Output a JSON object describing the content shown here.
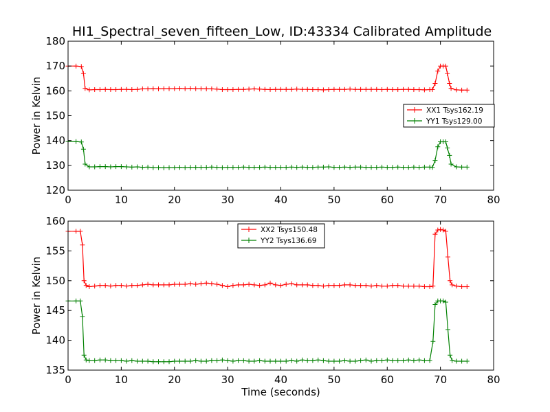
{
  "title": "HI1_Spectral_seven_fifteen_Low, ID:43334 Calibrated Amplitude",
  "colors": {
    "xx": "#ff0000",
    "yy": "#008000",
    "axis": "#000000",
    "background": "#ffffff"
  },
  "chart_data": [
    {
      "type": "line",
      "title": "HI1_Spectral_seven_fifteen_Low, ID:43334 Calibrated Amplitude",
      "xlabel": "",
      "ylabel": "Power in Kelvin",
      "xlim": [
        0,
        80
      ],
      "ylim": [
        120,
        180
      ],
      "xticks": [
        0,
        10,
        20,
        30,
        40,
        50,
        60,
        70,
        80
      ],
      "yticks": [
        120,
        130,
        140,
        150,
        160,
        170,
        180
      ],
      "grid": false,
      "legend": "center-right",
      "series": [
        {
          "name": "XX1 Tsys162.19",
          "color": "#ff0000",
          "x": [
            0,
            1.5,
            2.5,
            2.9,
            3.2,
            4,
            5,
            6,
            7,
            8,
            9,
            10,
            11,
            12,
            13,
            14,
            15,
            16,
            17,
            18,
            19,
            20,
            21,
            22,
            23,
            24,
            25,
            26,
            27,
            28,
            29,
            30,
            31,
            32,
            33,
            34,
            35,
            36,
            37,
            38,
            39,
            40,
            41,
            42,
            43,
            44,
            45,
            46,
            47,
            48,
            49,
            50,
            51,
            52,
            53,
            54,
            55,
            56,
            57,
            58,
            59,
            60,
            61,
            62,
            63,
            64,
            65,
            66,
            67,
            68,
            68.5,
            69.0,
            69.5,
            70,
            70.5,
            71.0,
            71.3,
            71.7,
            72.0,
            73,
            74,
            75
          ],
          "y": [
            170,
            170,
            169.8,
            167,
            161,
            160.4,
            160.5,
            160.5,
            160.6,
            160.5,
            160.5,
            160.6,
            160.6,
            160.5,
            160.6,
            160.8,
            160.8,
            160.9,
            160.8,
            160.9,
            160.9,
            160.9,
            161.0,
            160.9,
            161.0,
            160.9,
            160.9,
            160.8,
            160.8,
            160.7,
            160.5,
            160.5,
            160.5,
            160.6,
            160.6,
            160.7,
            160.8,
            160.7,
            160.6,
            160.5,
            160.6,
            160.6,
            160.6,
            160.6,
            160.7,
            160.6,
            160.6,
            160.5,
            160.5,
            160.4,
            160.5,
            160.6,
            160.6,
            160.6,
            160.7,
            160.6,
            160.6,
            160.6,
            160.6,
            160.6,
            160.5,
            160.6,
            160.5,
            160.5,
            160.6,
            160.6,
            160.5,
            160.5,
            160.4,
            160.5,
            160.5,
            163,
            168,
            170,
            170,
            170,
            167,
            163,
            161,
            160.4,
            160.3,
            160.3
          ]
        },
        {
          "name": "YY1 Tsys129.00",
          "color": "#008000",
          "x": [
            0,
            1.5,
            2.5,
            2.9,
            3.2,
            4,
            5,
            6,
            7,
            8,
            9,
            10,
            11,
            12,
            13,
            14,
            15,
            16,
            17,
            18,
            19,
            20,
            21,
            22,
            23,
            24,
            25,
            26,
            27,
            28,
            29,
            30,
            31,
            32,
            33,
            34,
            35,
            36,
            37,
            38,
            39,
            40,
            41,
            42,
            43,
            44,
            45,
            46,
            47,
            48,
            49,
            50,
            51,
            52,
            53,
            54,
            55,
            56,
            57,
            58,
            59,
            60,
            61,
            62,
            63,
            64,
            65,
            66,
            67,
            68,
            68.5,
            69.0,
            69.5,
            70,
            70.5,
            71.0,
            71.3,
            71.7,
            72.0,
            73,
            74,
            75
          ],
          "y": [
            139.6,
            139.6,
            139.4,
            136.5,
            130.5,
            129.4,
            129.4,
            129.5,
            129.5,
            129.4,
            129.5,
            129.5,
            129.4,
            129.3,
            129.4,
            129.2,
            129.3,
            129.1,
            129.1,
            129.0,
            129.1,
            129.1,
            129.2,
            129.1,
            129.2,
            129.2,
            129.2,
            129.2,
            129.3,
            129.2,
            129.1,
            129.2,
            129.2,
            129.2,
            129.3,
            129.2,
            129.2,
            129.2,
            129.3,
            129.2,
            129.2,
            129.2,
            129.2,
            129.3,
            129.2,
            129.3,
            129.2,
            129.2,
            129.3,
            129.3,
            129.4,
            129.2,
            129.2,
            129.3,
            129.2,
            129.3,
            129.3,
            129.2,
            129.2,
            129.2,
            129.3,
            129.2,
            129.2,
            129.3,
            129.2,
            129.2,
            129.3,
            129.2,
            129.3,
            129.3,
            129.2,
            132,
            137.5,
            139.5,
            139.5,
            139.5,
            137,
            134,
            130.5,
            129.4,
            129.3,
            129.3
          ]
        }
      ]
    },
    {
      "type": "line",
      "title": "",
      "xlabel": "Time (seconds)",
      "ylabel": "Power in Kelvin",
      "xlim": [
        0,
        80
      ],
      "ylim": [
        135,
        160
      ],
      "xticks": [
        0,
        10,
        20,
        30,
        40,
        50,
        60,
        70,
        80
      ],
      "yticks": [
        135,
        140,
        145,
        150,
        155,
        160
      ],
      "grid": false,
      "legend": "top-center",
      "series": [
        {
          "name": "XX2 Tsys150.48",
          "color": "#ff0000",
          "x": [
            0,
            1.5,
            2.3,
            2.7,
            3.0,
            3.4,
            4,
            5,
            6,
            7,
            8,
            9,
            10,
            11,
            12,
            13,
            14,
            15,
            16,
            17,
            18,
            19,
            20,
            21,
            22,
            23,
            24,
            25,
            26,
            27,
            28,
            29,
            30,
            31,
            32,
            33,
            34,
            35,
            36,
            37,
            38,
            39,
            40,
            41,
            42,
            43,
            44,
            45,
            46,
            47,
            48,
            49,
            50,
            51,
            52,
            53,
            54,
            55,
            56,
            57,
            58,
            59,
            60,
            61,
            62,
            63,
            64,
            65,
            66,
            67,
            68,
            68.6,
            69.0,
            69.5,
            70,
            70.5,
            71.0,
            71.4,
            71.8,
            72.2,
            73,
            74,
            75
          ],
          "y": [
            158.3,
            158.3,
            158.3,
            156,
            150,
            149.2,
            149.0,
            149.1,
            149.2,
            149.2,
            149.1,
            149.2,
            149.2,
            149.1,
            149.2,
            149.2,
            149.3,
            149.4,
            149.3,
            149.3,
            149.3,
            149.3,
            149.4,
            149.4,
            149.4,
            149.5,
            149.4,
            149.5,
            149.6,
            149.5,
            149.4,
            149.2,
            149.0,
            149.2,
            149.3,
            149.3,
            149.4,
            149.3,
            149.2,
            149.3,
            149.6,
            149.3,
            149.2,
            149.4,
            149.5,
            149.3,
            149.3,
            149.3,
            149.2,
            149.2,
            149.1,
            149.2,
            149.2,
            149.2,
            149.3,
            149.3,
            149.2,
            149.2,
            149.2,
            149.1,
            149.2,
            149.1,
            149.1,
            149.2,
            149.2,
            149.1,
            149.1,
            149.1,
            149.1,
            149.0,
            149.0,
            149.1,
            157.8,
            158.5,
            158.6,
            158.5,
            158.3,
            154,
            150,
            149.3,
            149.1,
            149.0,
            149.0
          ]
        },
        {
          "name": "YY2 Tsys136.69",
          "color": "#008000",
          "x": [
            0,
            1.5,
            2.3,
            2.7,
            3.0,
            3.4,
            4,
            5,
            6,
            7,
            8,
            9,
            10,
            11,
            12,
            13,
            14,
            15,
            16,
            17,
            18,
            19,
            20,
            21,
            22,
            23,
            24,
            25,
            26,
            27,
            28,
            29,
            30,
            31,
            32,
            33,
            34,
            35,
            36,
            37,
            38,
            39,
            40,
            41,
            42,
            43,
            44,
            45,
            46,
            47,
            48,
            49,
            50,
            51,
            52,
            53,
            54,
            55,
            56,
            57,
            58,
            59,
            60,
            61,
            62,
            63,
            64,
            65,
            66,
            67,
            68,
            68.6,
            69.0,
            69.5,
            70,
            70.5,
            71.0,
            71.4,
            71.8,
            72.2,
            73,
            74,
            75
          ],
          "y": [
            146.6,
            146.6,
            146.6,
            144,
            137.5,
            136.7,
            136.6,
            136.6,
            136.7,
            136.7,
            136.6,
            136.6,
            136.6,
            136.5,
            136.6,
            136.5,
            136.5,
            136.5,
            136.4,
            136.4,
            136.4,
            136.4,
            136.5,
            136.5,
            136.5,
            136.5,
            136.6,
            136.5,
            136.5,
            136.6,
            136.6,
            136.7,
            136.6,
            136.5,
            136.6,
            136.6,
            136.5,
            136.5,
            136.6,
            136.5,
            136.5,
            136.5,
            136.5,
            136.5,
            136.6,
            136.5,
            136.7,
            136.6,
            136.6,
            136.7,
            136.6,
            136.5,
            136.5,
            136.5,
            136.6,
            136.5,
            136.5,
            136.6,
            136.7,
            136.5,
            136.6,
            136.6,
            136.7,
            136.6,
            136.6,
            136.6,
            136.7,
            136.6,
            136.7,
            136.6,
            136.6,
            139.8,
            146,
            146.6,
            146.6,
            146.6,
            146.4,
            141.8,
            137.5,
            136.6,
            136.5,
            136.5,
            136.5
          ]
        }
      ]
    }
  ]
}
